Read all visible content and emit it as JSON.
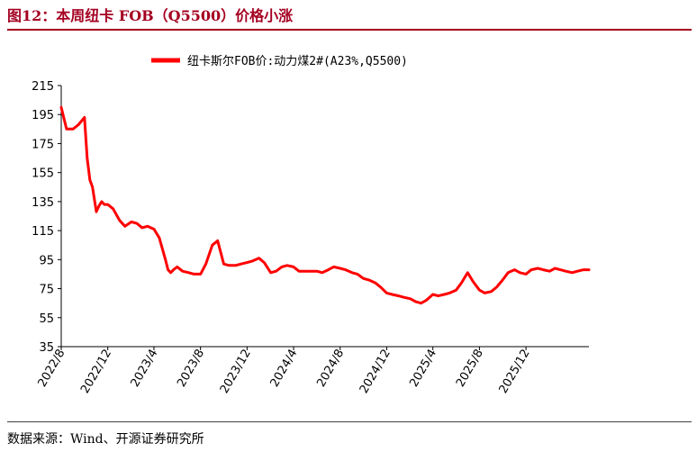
{
  "figure": {
    "title": "图12：本周纽卡 FOB（Q5500）价格小涨",
    "source": "数据来源：Wind、开源证券研究所"
  },
  "colors": {
    "series": "#ff0000",
    "title": "#a50021"
  },
  "chart_data": {
    "type": "line",
    "title": "",
    "xlabel": "",
    "ylabel": "",
    "ylim": [
      35,
      215
    ],
    "yticks": [
      35,
      55,
      75,
      95,
      115,
      135,
      155,
      175,
      195,
      215
    ],
    "xticks": [
      "2022/8",
      "2022/12",
      "2023/4",
      "2023/8",
      "2023/12",
      "2024/4",
      "2024/8",
      "2024/12",
      "2025/4",
      "2025/8",
      "2025/12"
    ],
    "legend": "top",
    "grid": false,
    "series": [
      {
        "name": "纽卡斯尔FOB价:动力煤2#(A23%,Q5500)",
        "x": [
          "2022/8/1",
          "2022/8/15",
          "2022/9/1",
          "2022/9/15",
          "2022/10/1",
          "2022/10/8",
          "2022/10/15",
          "2022/10/22",
          "2022/11/1",
          "2022/11/8",
          "2022/11/15",
          "2022/11/22",
          "2022/12/1",
          "2022/12/15",
          "2023/1/1",
          "2023/1/15",
          "2023/2/1",
          "2023/2/15",
          "2023/3/1",
          "2023/3/15",
          "2023/4/1",
          "2023/4/15",
          "2023/5/1",
          "2023/5/8",
          "2023/5/15",
          "2023/5/22",
          "2023/6/1",
          "2023/6/15",
          "2023/7/1",
          "2023/7/15",
          "2023/8/1",
          "2023/8/15",
          "2023/9/1",
          "2023/9/15",
          "2023/10/1",
          "2023/10/15",
          "2023/11/1",
          "2023/11/15",
          "2023/12/1",
          "2023/12/15",
          "2024/1/1",
          "2024/1/15",
          "2024/2/1",
          "2024/2/15",
          "2024/3/1",
          "2024/3/15",
          "2024/4/1",
          "2024/4/15",
          "2024/5/1",
          "2024/5/15",
          "2024/6/1",
          "2024/6/15",
          "2024/7/1",
          "2024/7/15",
          "2024/8/1",
          "2024/8/15",
          "2024/9/1",
          "2024/9/15",
          "2024/10/1",
          "2024/10/15",
          "2024/11/1",
          "2024/11/15",
          "2024/12/1",
          "2024/12/15",
          "2025/1/1",
          "2025/1/15",
          "2025/2/1",
          "2025/2/15",
          "2025/3/1",
          "2025/3/15",
          "2025/4/1",
          "2025/4/15",
          "2025/5/1",
          "2025/5/15",
          "2025/6/1",
          "2025/6/15",
          "2025/7/1",
          "2025/7/15",
          "2025/8/1",
          "2025/8/15",
          "2025/9/1",
          "2025/9/15",
          "2025/10/1",
          "2025/10/15",
          "2025/11/1",
          "2025/11/15",
          "2025/12/1",
          "2025/12/15",
          "2026/1/1",
          "2026/1/15",
          "2026/2/1",
          "2026/2/15",
          "2026/3/1",
          "2026/3/15",
          "2026/4/1",
          "2026/4/15",
          "2026/5/1",
          "2026/5/15"
        ],
        "y": [
          200,
          185,
          185,
          188,
          193,
          165,
          150,
          145,
          128,
          132,
          135,
          133,
          133,
          130,
          122,
          118,
          121,
          120,
          117,
          118,
          116,
          110,
          95,
          88,
          86,
          88,
          90,
          87,
          86,
          85,
          85,
          92,
          105,
          108,
          92,
          91,
          91,
          92,
          93,
          94,
          96,
          93,
          86,
          87,
          90,
          91,
          90,
          87,
          87,
          87,
          87,
          86,
          88,
          90,
          89,
          88,
          86,
          85,
          82,
          81,
          79,
          76,
          72,
          71,
          70,
          69,
          68,
          66,
          65,
          67,
          71,
          70,
          71,
          72,
          74,
          79,
          86,
          80,
          74,
          72,
          73,
          76,
          81,
          86,
          88,
          86,
          85,
          88,
          89,
          88,
          87,
          89,
          88,
          87,
          86,
          87,
          88,
          88
        ]
      }
    ]
  }
}
